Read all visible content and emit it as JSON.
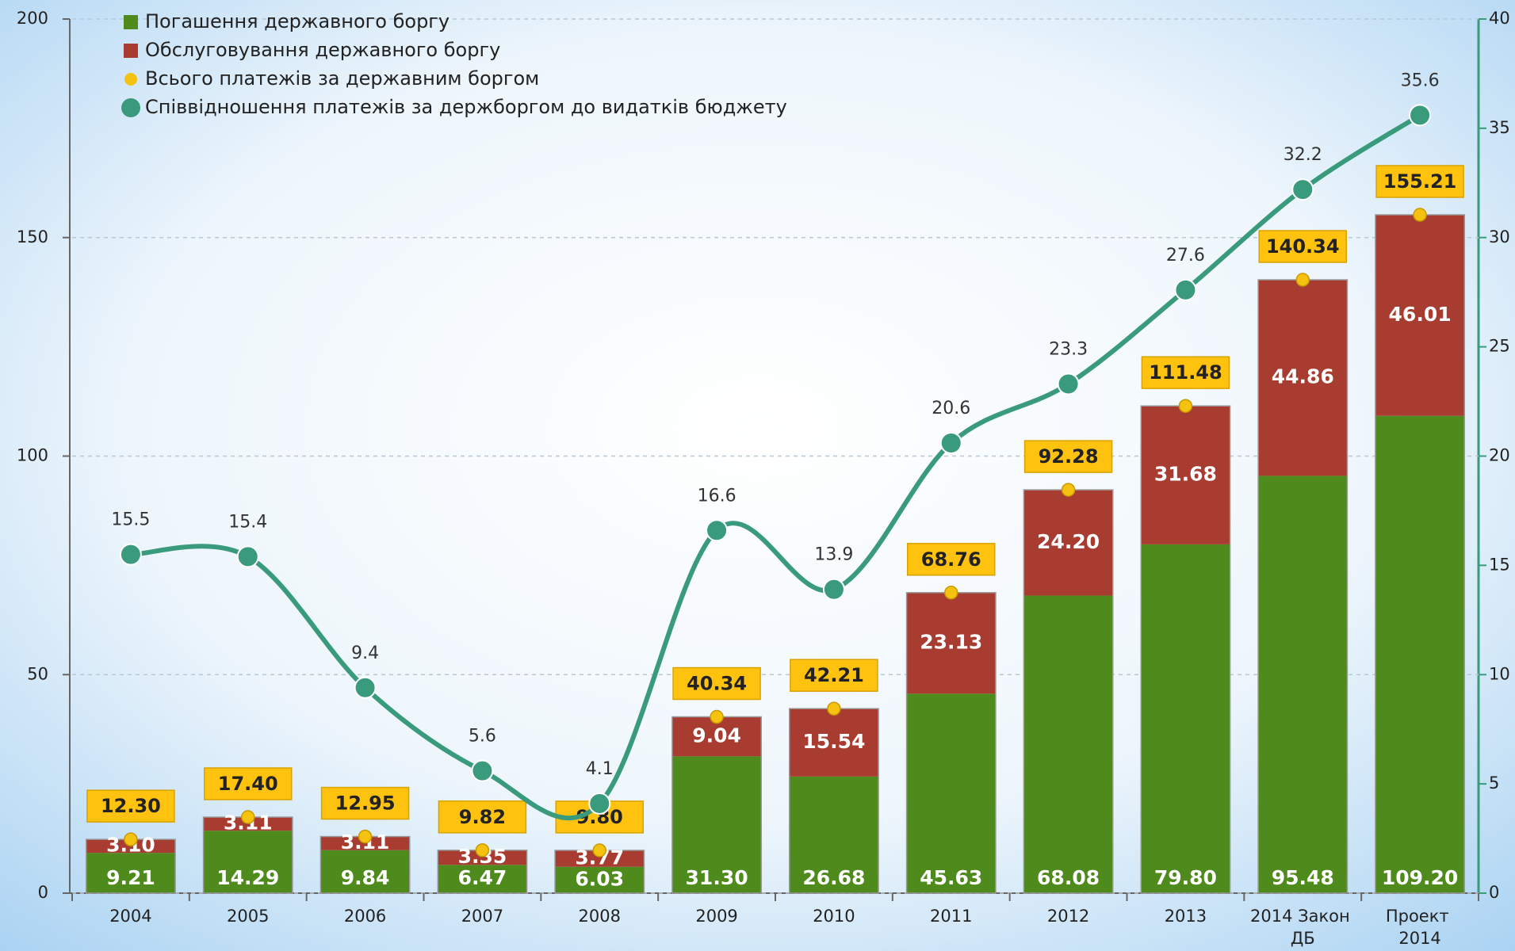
{
  "chart_data": {
    "type": "bar",
    "categories": [
      "2004",
      "2005",
      "2006",
      "2007",
      "2008",
      "2009",
      "2010",
      "2011",
      "2012",
      "2013",
      "2014 Закон ДБ",
      "Проект 2014"
    ],
    "series": [
      {
        "name": "Погашення державного боргу",
        "color": "#4f8a1c",
        "values": [
          9.21,
          14.29,
          9.84,
          6.47,
          6.03,
          31.3,
          26.68,
          45.63,
          68.08,
          79.8,
          95.48,
          109.2
        ],
        "value_labels": [
          "9.21",
          "14.29",
          "9.84",
          "6.47",
          "6.03",
          "31.30",
          "26.68",
          "45.63",
          "68.08",
          "79.80",
          "95.48",
          "109.20"
        ]
      },
      {
        "name": "Обслуговування державного боргу",
        "color": "#a83c30",
        "values": [
          3.1,
          3.11,
          3.11,
          3.35,
          3.77,
          9.04,
          15.54,
          23.13,
          24.2,
          31.68,
          44.86,
          46.01
        ],
        "value_labels": [
          "3.10",
          "3.11",
          "3.11",
          "3.35",
          "3.77",
          "9.04",
          "15.54",
          "23.13",
          "24.20",
          "31.68",
          "44.86",
          "46.01"
        ]
      },
      {
        "name": "Всього платежів за державним боргом",
        "color": "#f5c211",
        "values": [
          12.3,
          17.4,
          12.95,
          9.82,
          9.8,
          40.34,
          42.21,
          68.76,
          92.28,
          111.48,
          140.34,
          155.21
        ],
        "value_labels": [
          "12.30",
          "17.40",
          "12.95",
          "9.82",
          "9.80",
          "40.34",
          "42.21",
          "68.76",
          "92.28",
          "111.48",
          "140.34",
          "155.21"
        ]
      },
      {
        "name": "Співвідношення платежів за держборгом до видатків бюджету",
        "color": "#3a9a7c",
        "axis": "y2",
        "values": [
          15.5,
          15.4,
          9.4,
          5.6,
          4.1,
          16.6,
          13.9,
          20.6,
          23.3,
          27.6,
          32.2,
          35.6
        ]
      }
    ],
    "ylim": [
      0,
      200
    ],
    "yticks": [
      0,
      50,
      100,
      150,
      200
    ],
    "y2lim": [
      0,
      40
    ],
    "y2ticks": [
      0,
      5,
      10,
      15,
      20,
      25,
      30,
      35,
      40
    ],
    "legend": "top-left"
  }
}
